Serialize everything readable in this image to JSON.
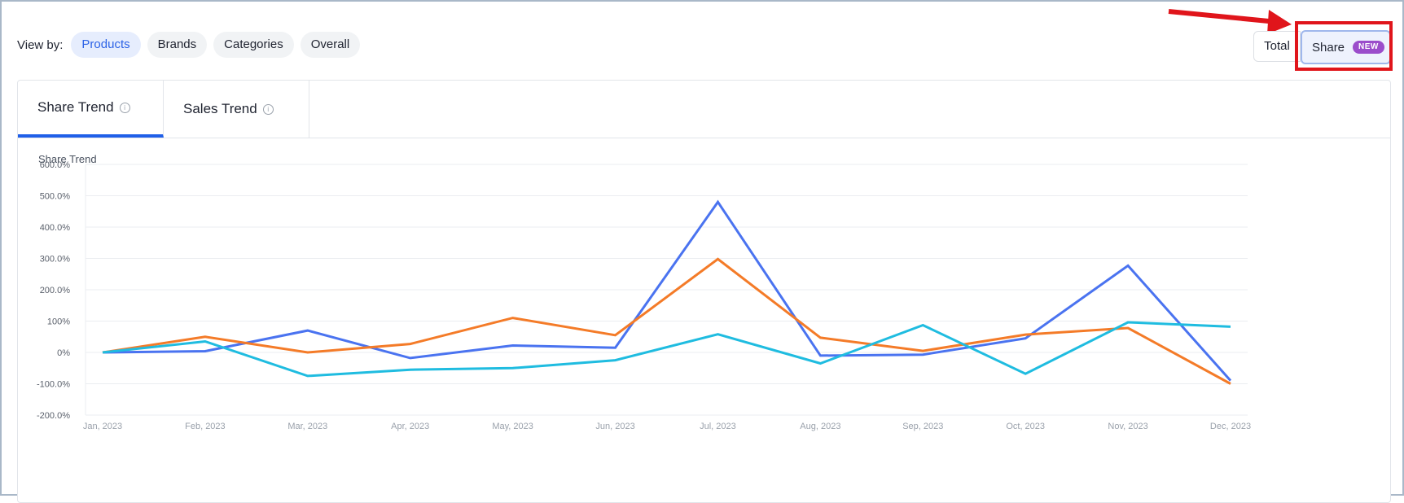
{
  "view_by": {
    "label": "View by:",
    "options": [
      "Products",
      "Brands",
      "Categories",
      "Overall"
    ],
    "selected": "Products"
  },
  "metric_toggle": {
    "total_label": "Total",
    "share_label": "Share",
    "share_badge": "NEW"
  },
  "tabs": [
    {
      "label": "Share Trend",
      "active": true
    },
    {
      "label": "Sales Trend",
      "active": false
    }
  ],
  "colors": {
    "accent": "#2d63e6",
    "series_blue": "#4a73f0",
    "series_orange": "#f47b28",
    "series_cyan": "#1fbce0",
    "highlight": "#e0151b",
    "badge": "#9b4dcb"
  },
  "chart_data": {
    "type": "line",
    "title": "Share Trend",
    "x": [
      "Jan, 2023",
      "Feb, 2023",
      "Mar, 2023",
      "Apr, 2023",
      "May, 2023",
      "Jun, 2023",
      "Jul, 2023",
      "Aug, 2023",
      "Sep, 2023",
      "Oct, 2023",
      "Nov, 2023",
      "Dec, 2023"
    ],
    "y_ticks": [
      "600.0%",
      "500.0%",
      "400.0%",
      "300.0%",
      "200.0%",
      "100%",
      "0%",
      "-100.0%",
      "-200.0%"
    ],
    "ylim": [
      -200,
      600
    ],
    "grid": true,
    "series": [
      {
        "color": "#4a73f0",
        "values": [
          0,
          4,
          70,
          -18,
          22,
          15,
          480,
          -10,
          -7,
          45,
          277,
          -90
        ]
      },
      {
        "color": "#f47b28",
        "values": [
          0,
          50,
          0,
          27,
          110,
          55,
          298,
          47,
          5,
          57,
          78,
          -100
        ]
      },
      {
        "color": "#1fbce0",
        "values": [
          0,
          35,
          -75,
          -55,
          -50,
          -25,
          58,
          -35,
          87,
          -68,
          96,
          82
        ]
      }
    ]
  }
}
